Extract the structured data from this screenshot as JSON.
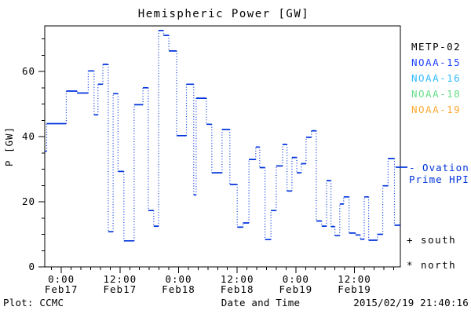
{
  "title": "Hemispheric Power [GW]",
  "footer": {
    "plot_credit": "Plot: CCMC",
    "xlabel": "Date and Time",
    "generated": "2015/02/19 21:40:16"
  },
  "legend": {
    "satellites": [
      {
        "label": "METP-02",
        "color": "#000000"
      },
      {
        "label": "NOAA-15",
        "color": "#2244ff"
      },
      {
        "label": "NOAA-16",
        "color": "#33bbff"
      },
      {
        "label": "NOAA-18",
        "color": "#66dd88"
      },
      {
        "label": "NOAA-19",
        "color": "#ffaa33"
      }
    ],
    "ovation": {
      "line1": "- Ovation",
      "line2": "Prime HPI",
      "color": "#0033dd"
    },
    "south_marker": "+ south",
    "north_marker": "* north"
  },
  "chart_data": {
    "type": "line",
    "style": "steps-with-dotted-connectors",
    "title": "Hemispheric Power [GW]",
    "xlabel": "Date and Time",
    "ylabel": "P [GW]",
    "line_color": "#0033dd",
    "frame_color": "#000000",
    "ylim": [
      0,
      74
    ],
    "y_ticks": [
      0,
      20,
      40,
      60
    ],
    "y_minor_step": 5,
    "xlim_hours_rel_feb17": [
      -3.4,
      69.4
    ],
    "x_minor_step_hours": 2,
    "x_ticks": [
      {
        "t": 0,
        "time": "0:00",
        "date": "Feb17"
      },
      {
        "t": 12,
        "time": "12:00",
        "date": "Feb17"
      },
      {
        "t": 24,
        "time": "0:00",
        "date": "Feb18"
      },
      {
        "t": 36,
        "time": "12:00",
        "date": "Feb18"
      },
      {
        "t": 48,
        "time": "0:00",
        "date": "Feb19"
      },
      {
        "t": 60,
        "time": "12:00",
        "date": "Feb19"
      }
    ],
    "series": [
      {
        "name": "Ovation Prime HPI",
        "units": "GW",
        "t_end": 69.4,
        "steps": [
          [
            -3.4,
            35.5
          ],
          [
            -3.0,
            44.0
          ],
          [
            1.0,
            54.0
          ],
          [
            3.2,
            53.4
          ],
          [
            5.5,
            60.2
          ],
          [
            6.7,
            46.7
          ],
          [
            7.5,
            56.1
          ],
          [
            8.5,
            62.2
          ],
          [
            9.6,
            10.8
          ],
          [
            10.6,
            53.2
          ],
          [
            11.6,
            29.3
          ],
          [
            12.8,
            8.0
          ],
          [
            14.9,
            49.8
          ],
          [
            16.7,
            55.0
          ],
          [
            17.8,
            17.3
          ],
          [
            18.9,
            12.5
          ],
          [
            19.9,
            72.6
          ],
          [
            20.9,
            71.1
          ],
          [
            22.0,
            66.3
          ],
          [
            23.6,
            40.3
          ],
          [
            25.6,
            56.1
          ],
          [
            27.1,
            22.1
          ],
          [
            27.6,
            51.8
          ],
          [
            29.7,
            43.8
          ],
          [
            30.8,
            28.9
          ],
          [
            32.9,
            42.2
          ],
          [
            34.5,
            25.3
          ],
          [
            36.0,
            12.2
          ],
          [
            37.2,
            13.5
          ],
          [
            38.4,
            33.0
          ],
          [
            39.8,
            36.8
          ],
          [
            40.6,
            30.5
          ],
          [
            41.7,
            8.4
          ],
          [
            42.9,
            17.3
          ],
          [
            44.0,
            31.0
          ],
          [
            45.3,
            37.6
          ],
          [
            46.2,
            23.3
          ],
          [
            47.2,
            33.6
          ],
          [
            48.2,
            28.9
          ],
          [
            49.1,
            31.7
          ],
          [
            50.1,
            39.8
          ],
          [
            51.2,
            41.8
          ],
          [
            52.2,
            14.1
          ],
          [
            53.3,
            12.5
          ],
          [
            54.3,
            26.5
          ],
          [
            55.2,
            12.4
          ],
          [
            56.0,
            9.6
          ],
          [
            57.0,
            19.3
          ],
          [
            57.8,
            21.5
          ],
          [
            58.9,
            10.4
          ],
          [
            60.2,
            9.8
          ],
          [
            61.2,
            8.5
          ],
          [
            62.0,
            21.5
          ],
          [
            62.9,
            8.2
          ],
          [
            64.7,
            10.0
          ],
          [
            65.8,
            24.9
          ],
          [
            66.9,
            33.3
          ],
          [
            68.2,
            12.8
          ]
        ]
      }
    ]
  }
}
